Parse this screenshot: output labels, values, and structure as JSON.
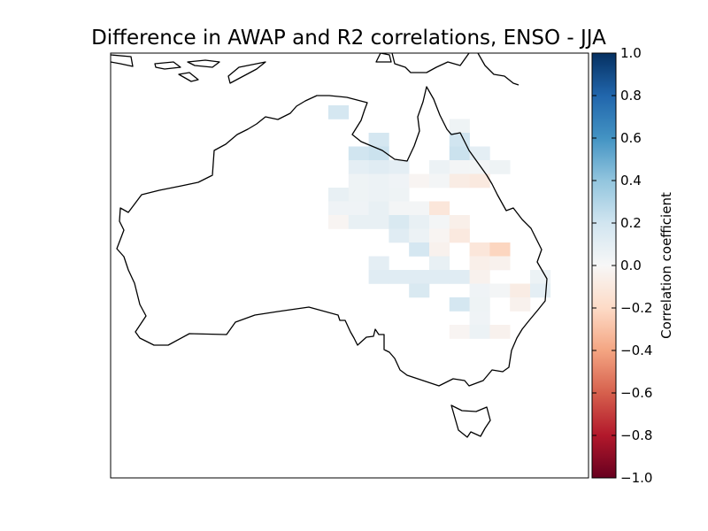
{
  "title": "Difference in AWAP and R2 correlations, ENSO - JJA",
  "colorbar": {
    "label": "Correlation coefficient",
    "ticks": [
      "1.0",
      "0.8",
      "0.6",
      "0.4",
      "0.2",
      "0.0",
      "−0.2",
      "−0.4",
      "−0.6",
      "−0.8",
      "−1.0"
    ],
    "range": [
      -1.0,
      1.0
    ],
    "colormap": "RdBu",
    "colors": [
      "#67001f",
      "#b2182b",
      "#d6604d",
      "#f4a582",
      "#fddbc7",
      "#f7f7f7",
      "#d1e5f0",
      "#92c5de",
      "#4393c3",
      "#2166ac",
      "#053061"
    ]
  },
  "grid": {
    "columns": [
      "c0",
      "c1",
      "c2",
      "c3",
      "c4",
      "c5",
      "c6",
      "c7",
      "c8",
      "c9",
      "c10"
    ],
    "rows": [
      {
        "label": "r0",
        "cells": [
          {
            "col": 0,
            "v": 0.18
          }
        ]
      },
      {
        "label": "r1",
        "cells": [
          {
            "col": 6,
            "v": 0.05
          }
        ]
      },
      {
        "label": "r2",
        "cells": [
          {
            "col": 2,
            "v": 0.18
          },
          {
            "col": 6,
            "v": 0.2
          }
        ]
      },
      {
        "label": "r3",
        "cells": [
          {
            "col": 1,
            "v": 0.2
          },
          {
            "col": 2,
            "v": 0.22
          },
          {
            "col": 6,
            "v": 0.22
          },
          {
            "col": 7,
            "v": 0.1
          }
        ]
      },
      {
        "label": "r4",
        "cells": [
          {
            "col": 1,
            "v": 0.1
          },
          {
            "col": 2,
            "v": 0.12
          },
          {
            "col": 3,
            "v": 0.1
          },
          {
            "col": 5,
            "v": 0.06
          },
          {
            "col": 6,
            "v": 0.02
          },
          {
            "col": 7,
            "v": 0.02
          },
          {
            "col": 8,
            "v": 0.05
          }
        ]
      },
      {
        "label": "r5",
        "cells": [
          {
            "col": 1,
            "v": 0.05
          },
          {
            "col": 2,
            "v": 0.06
          },
          {
            "col": 3,
            "v": 0.04
          },
          {
            "col": 4,
            "v": -0.02
          },
          {
            "col": 5,
            "v": 0.02
          },
          {
            "col": 6,
            "v": -0.08
          },
          {
            "col": 7,
            "v": -0.1
          }
        ]
      },
      {
        "label": "r6",
        "cells": [
          {
            "col": 0,
            "v": 0.08
          },
          {
            "col": 1,
            "v": 0.05
          },
          {
            "col": 2,
            "v": 0.06
          },
          {
            "col": 3,
            "v": 0.05
          }
        ]
      },
      {
        "label": "r7",
        "cells": [
          {
            "col": 0,
            "v": 0.04
          },
          {
            "col": 1,
            "v": 0.04
          },
          {
            "col": 2,
            "v": 0.08
          },
          {
            "col": 3,
            "v": 0.02
          },
          {
            "col": 4,
            "v": 0.02
          },
          {
            "col": 5,
            "v": -0.12
          }
        ]
      },
      {
        "label": "r8",
        "cells": [
          {
            "col": 0,
            "v": -0.02
          },
          {
            "col": 1,
            "v": 0.08
          },
          {
            "col": 2,
            "v": 0.08
          },
          {
            "col": 3,
            "v": 0.16
          },
          {
            "col": 4,
            "v": 0.08
          },
          {
            "col": 5,
            "v": 0.02
          },
          {
            "col": 6,
            "v": -0.06
          }
        ]
      },
      {
        "label": "r9",
        "cells": [
          {
            "col": 3,
            "v": 0.12
          },
          {
            "col": 4,
            "v": 0.06
          },
          {
            "col": 5,
            "v": -0.02
          },
          {
            "col": 6,
            "v": -0.1
          }
        ]
      },
      {
        "label": "r10",
        "cells": [
          {
            "col": 4,
            "v": 0.18
          },
          {
            "col": 5,
            "v": -0.04
          },
          {
            "col": 7,
            "v": -0.12
          },
          {
            "col": 8,
            "v": -0.22
          }
        ]
      },
      {
        "label": "r11",
        "cells": [
          {
            "col": 2,
            "v": 0.1
          },
          {
            "col": 5,
            "v": 0.08
          },
          {
            "col": 7,
            "v": -0.06
          },
          {
            "col": 8,
            "v": -0.04
          }
        ]
      },
      {
        "label": "r12",
        "cells": [
          {
            "col": 2,
            "v": 0.12
          },
          {
            "col": 3,
            "v": 0.12
          },
          {
            "col": 4,
            "v": 0.12
          },
          {
            "col": 5,
            "v": 0.12
          },
          {
            "col": 6,
            "v": 0.12
          },
          {
            "col": 7,
            "v": -0.04
          },
          {
            "col": 10,
            "v": 0.06
          }
        ]
      },
      {
        "label": "r13",
        "cells": [
          {
            "col": 4,
            "v": 0.16
          },
          {
            "col": 7,
            "v": 0.04
          },
          {
            "col": 8,
            "v": 0.02
          },
          {
            "col": 9,
            "v": -0.08
          },
          {
            "col": 10,
            "v": 0.1
          }
        ]
      },
      {
        "label": "r14",
        "cells": [
          {
            "col": 6,
            "v": 0.18
          },
          {
            "col": 7,
            "v": 0.05
          },
          {
            "col": 9,
            "v": -0.04
          }
        ]
      },
      {
        "label": "r15",
        "cells": [
          {
            "col": 7,
            "v": 0.04
          }
        ]
      },
      {
        "label": "r16",
        "cells": [
          {
            "col": 6,
            "v": -0.02
          },
          {
            "col": 7,
            "v": 0.06
          },
          {
            "col": 8,
            "v": -0.04
          }
        ]
      }
    ]
  }
}
